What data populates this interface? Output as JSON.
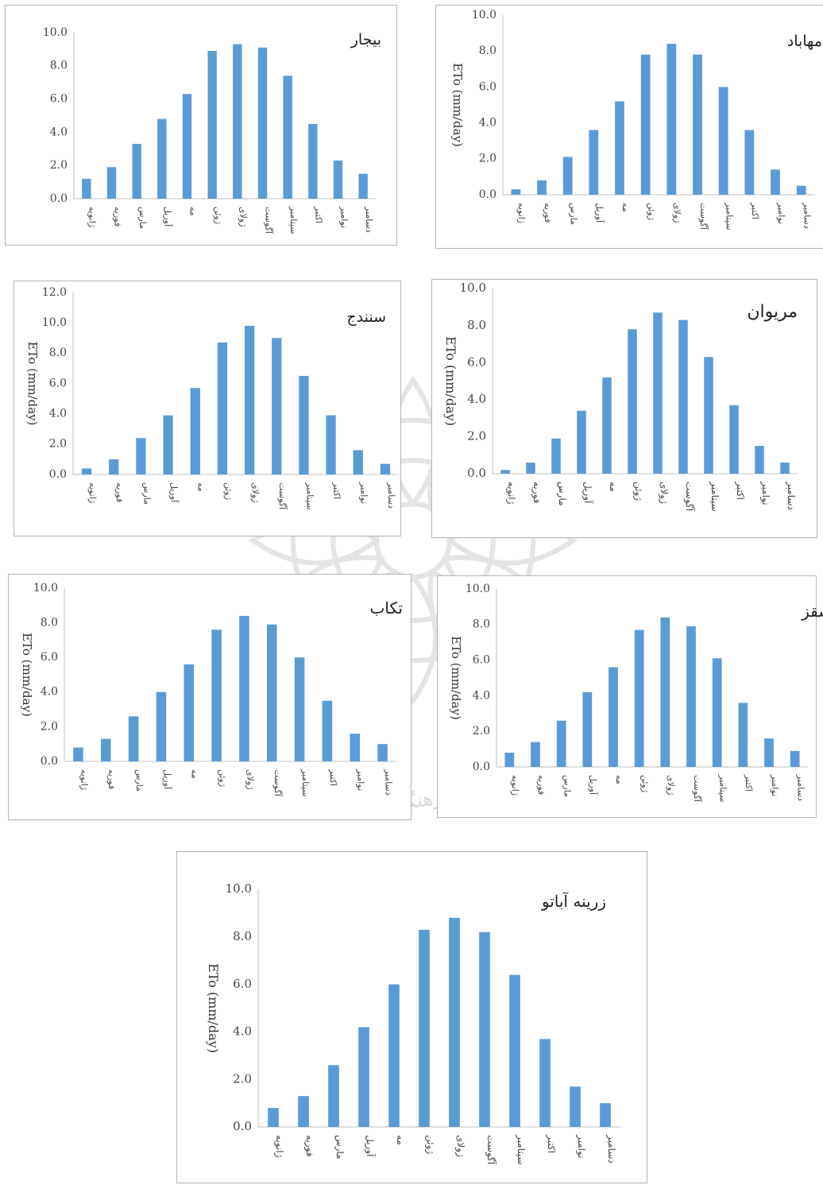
{
  "colors": {
    "bar": "#5b9bd5",
    "axis": "#bfbfbf",
    "text": "#444444",
    "border": "#b4b4b4"
  },
  "watermark": {
    "line1": "پژوهشگاه علوم انسانی و مطالعات فرهنگی",
    "line2": "پرتال جامع علوم انسانی"
  },
  "chart_data": [
    {
      "type": "bar",
      "title": "بیجار",
      "ylabel": "",
      "categories": [
        "ژانویه",
        "فوریه",
        "مارس",
        "آوریل",
        "مه",
        "ژوئن",
        "ژولای",
        "آگوست",
        "سپتامبر",
        "اکتبر",
        "نوامبر",
        "دسامبر"
      ],
      "values": [
        1.2,
        1.9,
        3.3,
        4.8,
        6.3,
        8.9,
        9.3,
        9.1,
        7.4,
        4.5,
        2.3,
        1.5
      ],
      "ylim": [
        0,
        10
      ],
      "yticks": [
        "0.0",
        "2.0",
        "4.0",
        "6.0",
        "8.0",
        "10.0"
      ],
      "grid": false
    },
    {
      "type": "bar",
      "title": "مهاباد",
      "ylabel": "ETo (mm/day)",
      "categories": [
        "ژانویه",
        "فوریه",
        "مارس",
        "آوریل",
        "مه",
        "ژوئن",
        "ژولای",
        "آگوست",
        "سپتامبر",
        "اکتبر",
        "نوامبر",
        "دسامبر"
      ],
      "values": [
        0.3,
        0.8,
        2.1,
        3.6,
        5.2,
        7.8,
        8.4,
        7.8,
        6.0,
        3.6,
        1.4,
        0.5
      ],
      "ylim": [
        0,
        10
      ],
      "yticks": [
        "0.0",
        "2.0",
        "4.0",
        "6.0",
        "8.0",
        "10.0"
      ],
      "grid": false
    },
    {
      "type": "bar",
      "title": "سنندج",
      "ylabel": "ETo (mm/day)",
      "categories": [
        "ژانویه",
        "فوریه",
        "مارس",
        "آوریل",
        "مه",
        "ژوئن",
        "ژولای",
        "آگوست",
        "سپتامبر",
        "اکتبر",
        "نوامبر",
        "دسامبر"
      ],
      "values": [
        0.4,
        1.0,
        2.4,
        3.9,
        5.7,
        8.7,
        9.8,
        9.0,
        6.5,
        3.9,
        1.6,
        0.7
      ],
      "ylim": [
        0,
        12
      ],
      "yticks": [
        "0.0",
        "2.0",
        "4.0",
        "6.0",
        "8.0",
        "10.0",
        "12.0"
      ],
      "grid": false
    },
    {
      "type": "bar",
      "title": "مریوان",
      "ylabel": "ETo (mm/day)",
      "categories": [
        "ژانویه",
        "فوریه",
        "مارس",
        "آوریل",
        "مه",
        "ژوئن",
        "ژولای",
        "آگوست",
        "سپتامبر",
        "اکتبر",
        "نوامبر",
        "دسامبر"
      ],
      "values": [
        0.2,
        0.6,
        1.9,
        3.4,
        5.2,
        7.8,
        8.7,
        8.3,
        6.3,
        3.7,
        1.5,
        0.6
      ],
      "ylim": [
        0,
        10
      ],
      "yticks": [
        "0.0",
        "2.0",
        "4.0",
        "6.0",
        "8.0",
        "10.0"
      ],
      "grid": false
    },
    {
      "type": "bar",
      "title": "تکاب",
      "ylabel": "ETo (mm/day)",
      "categories": [
        "ژانویه",
        "فوریه",
        "مارس",
        "آوریل",
        "مه",
        "ژوئن",
        "ژولای",
        "آگوست",
        "سپتامبر",
        "اکتبر",
        "نوامبر",
        "دسامبر"
      ],
      "values": [
        0.8,
        1.3,
        2.6,
        4.0,
        5.6,
        7.6,
        8.4,
        7.9,
        6.0,
        3.5,
        1.6,
        1.0
      ],
      "ylim": [
        0,
        10
      ],
      "yticks": [
        "0.0",
        "2.0",
        "4.0",
        "6.0",
        "8.0",
        "10.0"
      ],
      "grid": false
    },
    {
      "type": "bar",
      "title": "سقز",
      "ylabel": "ETo (mm/day)",
      "categories": [
        "ژانویه",
        "فوریه",
        "مارس",
        "آوریل",
        "مه",
        "ژوئن",
        "ژولای",
        "آگوست",
        "سپتامبر",
        "اکتبر",
        "نوامبر",
        "دسامبر"
      ],
      "values": [
        0.8,
        1.4,
        2.6,
        4.2,
        5.6,
        7.7,
        8.4,
        7.9,
        6.1,
        3.6,
        1.6,
        0.9
      ],
      "ylim": [
        0,
        10
      ],
      "yticks": [
        "0.0",
        "2.0",
        "4.0",
        "6.0",
        "8.0",
        "10.0"
      ],
      "grid": false
    },
    {
      "type": "bar",
      "title": "زرینه آباتو",
      "ylabel": "ETo (mm/day)",
      "categories": [
        "ژانویه",
        "فوریه",
        "مارس",
        "آوریل",
        "مه",
        "ژوئن",
        "ژولای",
        "آگوست",
        "سپتامبر",
        "اکتبر",
        "نوامبر",
        "دسامبر"
      ],
      "values": [
        0.8,
        1.3,
        2.6,
        4.2,
        6.0,
        8.3,
        8.8,
        8.2,
        6.4,
        3.7,
        1.7,
        1.0
      ],
      "ylim": [
        0,
        10
      ],
      "yticks": [
        "0.0",
        "2.0",
        "4.0",
        "6.0",
        "8.0",
        "10.0"
      ],
      "grid": false
    }
  ]
}
